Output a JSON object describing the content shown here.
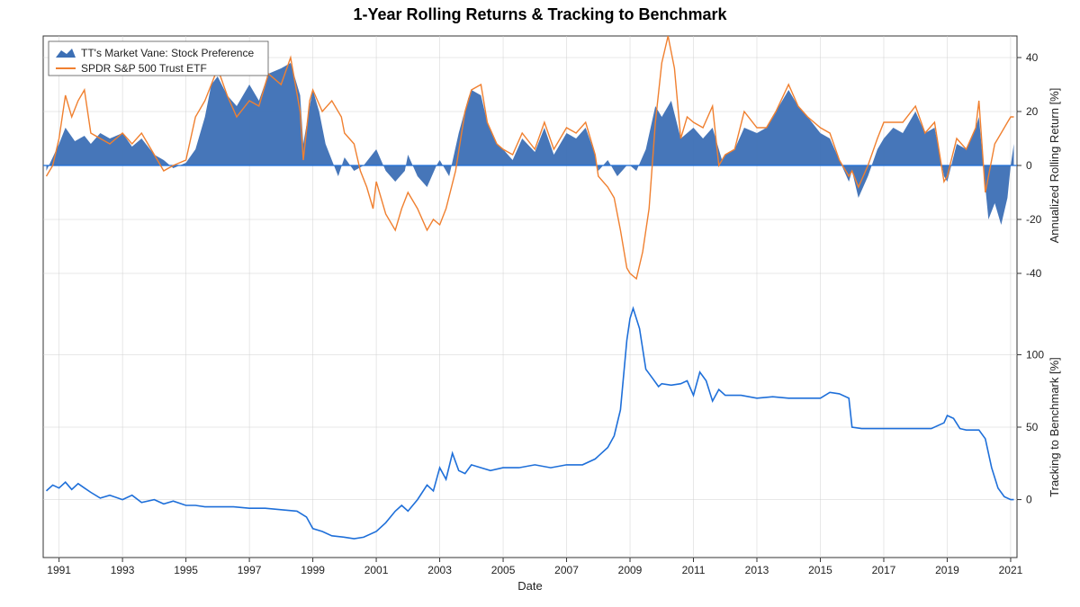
{
  "title": "1-Year Rolling Returns & Tracking to Benchmark",
  "x_axis": {
    "label": "Date",
    "min_year": 1990.5,
    "max_year": 2021.2,
    "tick_start": 1991,
    "tick_step": 2,
    "label_fontsize": 13,
    "tick_fontsize": 12
  },
  "upper": {
    "axis_label": "Annualized Rolling Return [%]",
    "ylim": [
      -48,
      48
    ],
    "ticks": [
      -40,
      -20,
      0,
      20,
      40
    ],
    "grid_color": "#d0d0d0",
    "zero_line_color": "#1e6fd9",
    "fill_color": "#3c6fb5",
    "fill_opacity": 0.95,
    "benchmark_line_color": "#f08030",
    "benchmark_line_width": 1.4,
    "legend": {
      "box_stroke": "#555555",
      "box_fill": "#ffffff",
      "items": [
        {
          "type": "area",
          "label": "TT's Market Vane: Stock Preference",
          "color": "#3c6fb5"
        },
        {
          "type": "line",
          "label": "SPDR S&P 500 Trust ETF",
          "color": "#f08030"
        }
      ]
    },
    "area_series": [
      [
        1990.6,
        -2
      ],
      [
        1990.8,
        3
      ],
      [
        1991.0,
        8
      ],
      [
        1991.2,
        14
      ],
      [
        1991.5,
        9
      ],
      [
        1991.8,
        11
      ],
      [
        1992.0,
        8
      ],
      [
        1992.3,
        12
      ],
      [
        1992.6,
        10
      ],
      [
        1993.0,
        12
      ],
      [
        1993.3,
        7
      ],
      [
        1993.6,
        10
      ],
      [
        1994.0,
        4
      ],
      [
        1994.3,
        2
      ],
      [
        1994.6,
        -1
      ],
      [
        1995.0,
        1
      ],
      [
        1995.3,
        6
      ],
      [
        1995.6,
        18
      ],
      [
        1995.8,
        30
      ],
      [
        1996.0,
        33
      ],
      [
        1996.3,
        26
      ],
      [
        1996.6,
        22
      ],
      [
        1997.0,
        30
      ],
      [
        1997.3,
        24
      ],
      [
        1997.6,
        34
      ],
      [
        1998.0,
        36
      ],
      [
        1998.3,
        38
      ],
      [
        1998.6,
        26
      ],
      [
        1998.7,
        8
      ],
      [
        1998.9,
        22
      ],
      [
        1999.0,
        28
      ],
      [
        1999.2,
        20
      ],
      [
        1999.4,
        8
      ],
      [
        1999.6,
        2
      ],
      [
        1999.8,
        -4
      ],
      [
        2000.0,
        3
      ],
      [
        2000.3,
        -2
      ],
      [
        2000.6,
        0
      ],
      [
        2001.0,
        6
      ],
      [
        2001.3,
        -2
      ],
      [
        2001.6,
        -6
      ],
      [
        2001.9,
        -2
      ],
      [
        2002.0,
        4
      ],
      [
        2002.3,
        -4
      ],
      [
        2002.6,
        -8
      ],
      [
        2002.9,
        0
      ],
      [
        2003.0,
        2
      ],
      [
        2003.3,
        -4
      ],
      [
        2003.6,
        12
      ],
      [
        2003.9,
        25
      ],
      [
        2004.0,
        28
      ],
      [
        2004.3,
        26
      ],
      [
        2004.5,
        16
      ],
      [
        2004.8,
        8
      ],
      [
        2005.0,
        6
      ],
      [
        2005.3,
        2
      ],
      [
        2005.6,
        10
      ],
      [
        2006.0,
        5
      ],
      [
        2006.3,
        14
      ],
      [
        2006.6,
        4
      ],
      [
        2007.0,
        12
      ],
      [
        2007.3,
        10
      ],
      [
        2007.6,
        14
      ],
      [
        2007.9,
        4
      ],
      [
        2008.0,
        -2
      ],
      [
        2008.3,
        2
      ],
      [
        2008.6,
        -4
      ],
      [
        2008.9,
        0
      ],
      [
        2009.0,
        0
      ],
      [
        2009.2,
        -2
      ],
      [
        2009.5,
        6
      ],
      [
        2009.8,
        22
      ],
      [
        2010.0,
        18
      ],
      [
        2010.3,
        24
      ],
      [
        2010.6,
        10
      ],
      [
        2011.0,
        14
      ],
      [
        2011.3,
        10
      ],
      [
        2011.6,
        14
      ],
      [
        2011.9,
        2
      ],
      [
        2012.0,
        4
      ],
      [
        2012.3,
        6
      ],
      [
        2012.6,
        14
      ],
      [
        2013.0,
        12
      ],
      [
        2013.3,
        14
      ],
      [
        2013.6,
        20
      ],
      [
        2014.0,
        28
      ],
      [
        2014.3,
        22
      ],
      [
        2014.6,
        18
      ],
      [
        2015.0,
        12
      ],
      [
        2015.3,
        10
      ],
      [
        2015.6,
        2
      ],
      [
        2015.9,
        -6
      ],
      [
        2016.0,
        -2
      ],
      [
        2016.2,
        -12
      ],
      [
        2016.5,
        -4
      ],
      [
        2016.8,
        6
      ],
      [
        2017.0,
        10
      ],
      [
        2017.3,
        14
      ],
      [
        2017.6,
        12
      ],
      [
        2018.0,
        20
      ],
      [
        2018.3,
        12
      ],
      [
        2018.6,
        14
      ],
      [
        2018.9,
        -4
      ],
      [
        2019.0,
        -6
      ],
      [
        2019.3,
        8
      ],
      [
        2019.6,
        6
      ],
      [
        2019.9,
        14
      ],
      [
        2020.0,
        18
      ],
      [
        2020.2,
        -8
      ],
      [
        2020.3,
        -20
      ],
      [
        2020.5,
        -14
      ],
      [
        2020.7,
        -22
      ],
      [
        2020.9,
        -12
      ],
      [
        2021.0,
        0
      ],
      [
        2021.1,
        8
      ]
    ],
    "line_series": [
      [
        1990.6,
        -4
      ],
      [
        1990.8,
        0
      ],
      [
        1991.0,
        10
      ],
      [
        1991.2,
        26
      ],
      [
        1991.4,
        18
      ],
      [
        1991.6,
        24
      ],
      [
        1991.8,
        28
      ],
      [
        1992.0,
        12
      ],
      [
        1992.3,
        10
      ],
      [
        1992.6,
        8
      ],
      [
        1993.0,
        12
      ],
      [
        1993.3,
        8
      ],
      [
        1993.6,
        12
      ],
      [
        1994.0,
        4
      ],
      [
        1994.3,
        -2
      ],
      [
        1994.6,
        0
      ],
      [
        1995.0,
        2
      ],
      [
        1995.3,
        18
      ],
      [
        1995.6,
        24
      ],
      [
        1995.8,
        30
      ],
      [
        1996.0,
        36
      ],
      [
        1996.3,
        26
      ],
      [
        1996.6,
        18
      ],
      [
        1997.0,
        24
      ],
      [
        1997.3,
        22
      ],
      [
        1997.6,
        34
      ],
      [
        1998.0,
        30
      ],
      [
        1998.3,
        40
      ],
      [
        1998.6,
        20
      ],
      [
        1998.7,
        2
      ],
      [
        1998.9,
        24
      ],
      [
        1999.0,
        28
      ],
      [
        1999.3,
        20
      ],
      [
        1999.6,
        24
      ],
      [
        1999.9,
        18
      ],
      [
        2000.0,
        12
      ],
      [
        2000.3,
        8
      ],
      [
        2000.5,
        -2
      ],
      [
        2000.7,
        -8
      ],
      [
        2000.9,
        -16
      ],
      [
        2001.0,
        -6
      ],
      [
        2001.3,
        -18
      ],
      [
        2001.6,
        -24
      ],
      [
        2001.8,
        -16
      ],
      [
        2002.0,
        -10
      ],
      [
        2002.3,
        -16
      ],
      [
        2002.6,
        -24
      ],
      [
        2002.8,
        -20
      ],
      [
        2003.0,
        -22
      ],
      [
        2003.2,
        -16
      ],
      [
        2003.5,
        -2
      ],
      [
        2003.8,
        20
      ],
      [
        2004.0,
        28
      ],
      [
        2004.3,
        30
      ],
      [
        2004.5,
        16
      ],
      [
        2004.8,
        8
      ],
      [
        2005.0,
        6
      ],
      [
        2005.3,
        4
      ],
      [
        2005.6,
        12
      ],
      [
        2006.0,
        6
      ],
      [
        2006.3,
        16
      ],
      [
        2006.6,
        6
      ],
      [
        2007.0,
        14
      ],
      [
        2007.3,
        12
      ],
      [
        2007.6,
        16
      ],
      [
        2007.9,
        4
      ],
      [
        2008.0,
        -4
      ],
      [
        2008.3,
        -8
      ],
      [
        2008.5,
        -12
      ],
      [
        2008.7,
        -24
      ],
      [
        2008.9,
        -38
      ],
      [
        2009.0,
        -40
      ],
      [
        2009.2,
        -42
      ],
      [
        2009.4,
        -32
      ],
      [
        2009.6,
        -16
      ],
      [
        2009.8,
        16
      ],
      [
        2010.0,
        38
      ],
      [
        2010.2,
        48
      ],
      [
        2010.4,
        36
      ],
      [
        2010.6,
        10
      ],
      [
        2010.8,
        18
      ],
      [
        2011.0,
        16
      ],
      [
        2011.3,
        14
      ],
      [
        2011.6,
        22
      ],
      [
        2011.8,
        0
      ],
      [
        2012.0,
        4
      ],
      [
        2012.3,
        6
      ],
      [
        2012.6,
        20
      ],
      [
        2013.0,
        14
      ],
      [
        2013.3,
        14
      ],
      [
        2013.6,
        20
      ],
      [
        2014.0,
        30
      ],
      [
        2014.3,
        22
      ],
      [
        2014.6,
        18
      ],
      [
        2015.0,
        14
      ],
      [
        2015.3,
        12
      ],
      [
        2015.6,
        2
      ],
      [
        2015.9,
        -4
      ],
      [
        2016.0,
        -2
      ],
      [
        2016.2,
        -8
      ],
      [
        2016.5,
        0
      ],
      [
        2016.8,
        10
      ],
      [
        2017.0,
        16
      ],
      [
        2017.3,
        16
      ],
      [
        2017.6,
        16
      ],
      [
        2018.0,
        22
      ],
      [
        2018.3,
        12
      ],
      [
        2018.6,
        16
      ],
      [
        2018.9,
        -6
      ],
      [
        2019.0,
        -4
      ],
      [
        2019.3,
        10
      ],
      [
        2019.6,
        6
      ],
      [
        2019.9,
        14
      ],
      [
        2020.0,
        24
      ],
      [
        2020.2,
        -10
      ],
      [
        2020.3,
        -4
      ],
      [
        2020.5,
        8
      ],
      [
        2020.7,
        12
      ],
      [
        2020.9,
        16
      ],
      [
        2021.0,
        18
      ],
      [
        2021.1,
        18
      ]
    ]
  },
  "lower": {
    "axis_label": "Tracking to Benchmark [%]",
    "ylim": [
      -40,
      140
    ],
    "ticks": [
      0,
      50,
      100
    ],
    "grid_color": "#d0d0d0",
    "line_color": "#1e6fd9",
    "line_width": 1.6,
    "series": [
      [
        1990.6,
        6
      ],
      [
        1990.8,
        10
      ],
      [
        1991.0,
        8
      ],
      [
        1991.2,
        12
      ],
      [
        1991.4,
        7
      ],
      [
        1991.6,
        11
      ],
      [
        1991.8,
        8
      ],
      [
        1992.0,
        5
      ],
      [
        1992.3,
        1
      ],
      [
        1992.6,
        3
      ],
      [
        1993.0,
        0
      ],
      [
        1993.3,
        3
      ],
      [
        1993.6,
        -2
      ],
      [
        1994.0,
        0
      ],
      [
        1994.3,
        -3
      ],
      [
        1994.6,
        -1
      ],
      [
        1995.0,
        -4
      ],
      [
        1995.3,
        -4
      ],
      [
        1995.6,
        -5
      ],
      [
        1996.0,
        -5
      ],
      [
        1996.5,
        -5
      ],
      [
        1997.0,
        -6
      ],
      [
        1997.5,
        -6
      ],
      [
        1998.0,
        -7
      ],
      [
        1998.5,
        -8
      ],
      [
        1998.8,
        -12
      ],
      [
        1999.0,
        -20
      ],
      [
        1999.3,
        -22
      ],
      [
        1999.6,
        -25
      ],
      [
        2000.0,
        -26
      ],
      [
        2000.3,
        -27
      ],
      [
        2000.6,
        -26
      ],
      [
        2001.0,
        -22
      ],
      [
        2001.3,
        -16
      ],
      [
        2001.6,
        -8
      ],
      [
        2001.8,
        -4
      ],
      [
        2002.0,
        -8
      ],
      [
        2002.3,
        0
      ],
      [
        2002.6,
        10
      ],
      [
        2002.8,
        6
      ],
      [
        2003.0,
        22
      ],
      [
        2003.2,
        14
      ],
      [
        2003.4,
        32
      ],
      [
        2003.6,
        20
      ],
      [
        2003.8,
        18
      ],
      [
        2004.0,
        24
      ],
      [
        2004.3,
        22
      ],
      [
        2004.6,
        20
      ],
      [
        2005.0,
        22
      ],
      [
        2005.5,
        22
      ],
      [
        2006.0,
        24
      ],
      [
        2006.5,
        22
      ],
      [
        2007.0,
        24
      ],
      [
        2007.5,
        24
      ],
      [
        2007.9,
        28
      ],
      [
        2008.0,
        30
      ],
      [
        2008.3,
        36
      ],
      [
        2008.5,
        44
      ],
      [
        2008.7,
        62
      ],
      [
        2008.9,
        110
      ],
      [
        2009.0,
        125
      ],
      [
        2009.1,
        132
      ],
      [
        2009.3,
        118
      ],
      [
        2009.5,
        90
      ],
      [
        2009.7,
        84
      ],
      [
        2009.9,
        78
      ],
      [
        2010.0,
        80
      ],
      [
        2010.3,
        79
      ],
      [
        2010.6,
        80
      ],
      [
        2010.8,
        82
      ],
      [
        2011.0,
        72
      ],
      [
        2011.2,
        88
      ],
      [
        2011.4,
        82
      ],
      [
        2011.6,
        68
      ],
      [
        2011.8,
        76
      ],
      [
        2012.0,
        72
      ],
      [
        2012.5,
        72
      ],
      [
        2013.0,
        70
      ],
      [
        2013.5,
        71
      ],
      [
        2014.0,
        70
      ],
      [
        2014.5,
        70
      ],
      [
        2015.0,
        70
      ],
      [
        2015.3,
        74
      ],
      [
        2015.6,
        73
      ],
      [
        2015.9,
        70
      ],
      [
        2016.0,
        50
      ],
      [
        2016.3,
        49
      ],
      [
        2016.6,
        49
      ],
      [
        2017.0,
        49
      ],
      [
        2017.5,
        49
      ],
      [
        2018.0,
        49
      ],
      [
        2018.5,
        49
      ],
      [
        2018.9,
        53
      ],
      [
        2019.0,
        58
      ],
      [
        2019.2,
        56
      ],
      [
        2019.4,
        49
      ],
      [
        2019.6,
        48
      ],
      [
        2019.9,
        48
      ],
      [
        2020.0,
        48
      ],
      [
        2020.2,
        42
      ],
      [
        2020.4,
        22
      ],
      [
        2020.6,
        8
      ],
      [
        2020.8,
        2
      ],
      [
        2021.0,
        0
      ],
      [
        2021.1,
        0
      ]
    ]
  },
  "plot": {
    "border_color": "#333333",
    "background": "#ffffff"
  }
}
